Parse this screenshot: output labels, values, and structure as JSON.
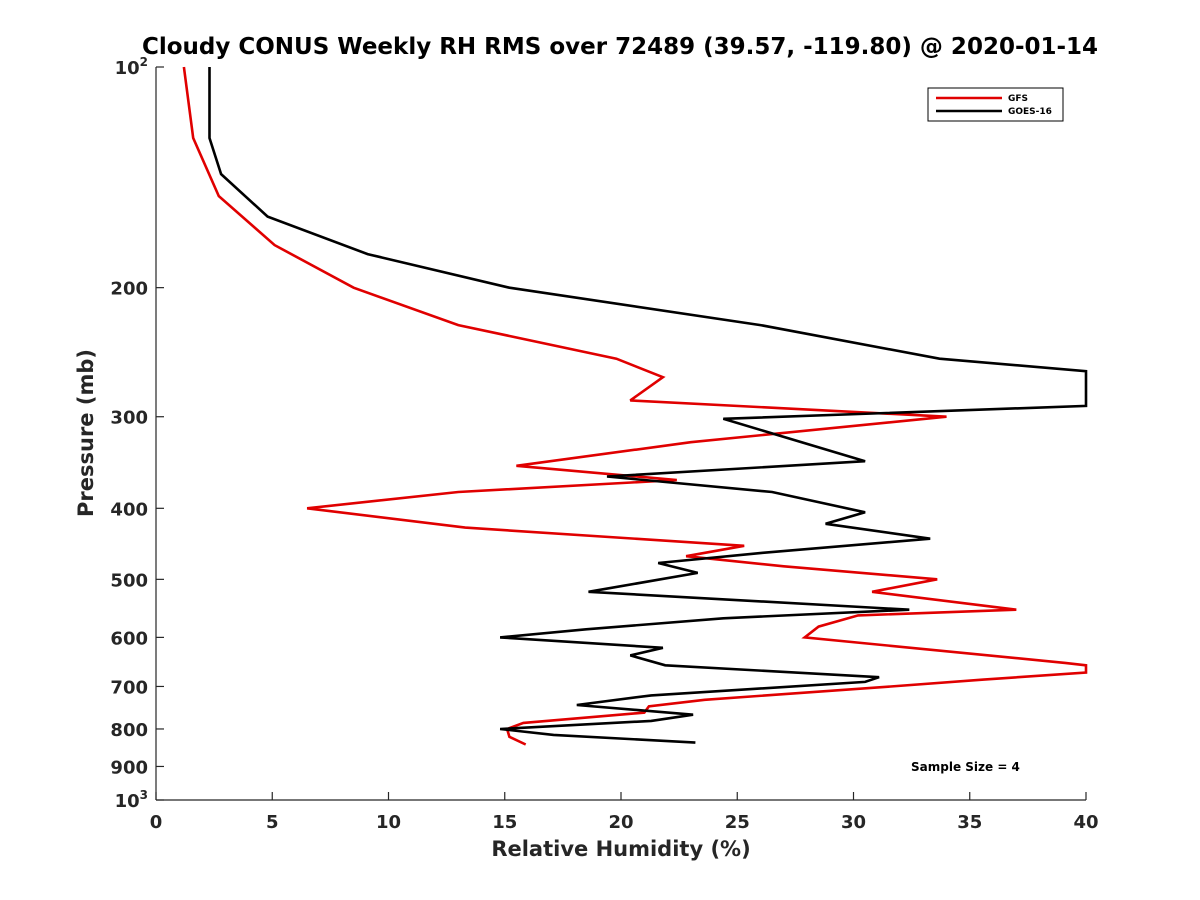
{
  "chart_data": {
    "type": "line",
    "title": "Cloudy CONUS Weekly RH RMS over 72489 (39.57, -119.80) @ 2020-01-14",
    "xlabel": "Relative Humidity (%)",
    "ylabel": "Pressure (mb)",
    "xlim": [
      0,
      40
    ],
    "ylim": [
      100,
      1000
    ],
    "y_scale": "log",
    "y_reversed": true,
    "grid": false,
    "legend_position": "top-right",
    "x_ticks": [
      "0",
      "5",
      "10",
      "15",
      "20",
      "25",
      "30",
      "35",
      "40"
    ],
    "y_ticks": [
      {
        "value": 100,
        "base": "10",
        "exp": "2"
      },
      {
        "value": 200,
        "label": "200"
      },
      {
        "value": 300,
        "label": "300"
      },
      {
        "value": 400,
        "label": "400"
      },
      {
        "value": 500,
        "label": "500"
      },
      {
        "value": 600,
        "label": "600"
      },
      {
        "value": 700,
        "label": "700"
      },
      {
        "value": 800,
        "label": "800"
      },
      {
        "value": 900,
        "label": "900"
      },
      {
        "value": 1000,
        "base": "10",
        "exp": "3"
      }
    ],
    "series": [
      {
        "name": "GFS",
        "color": "#e00000",
        "points": [
          [
            1.2,
            100
          ],
          [
            1.6,
            125
          ],
          [
            2.7,
            150
          ],
          [
            5.1,
            175
          ],
          [
            8.5,
            200
          ],
          [
            13,
            225
          ],
          [
            19.8,
            250
          ],
          [
            21.8,
            265
          ],
          [
            20.4,
            285
          ],
          [
            34,
            300
          ],
          [
            23,
            325
          ],
          [
            15.5,
            350
          ],
          [
            22.4,
            366
          ],
          [
            13,
            380
          ],
          [
            6.5,
            400
          ],
          [
            13.3,
            425
          ],
          [
            25.3,
            450
          ],
          [
            22.8,
            465
          ],
          [
            27,
            480
          ],
          [
            33.6,
            500
          ],
          [
            30.8,
            520
          ],
          [
            37,
            550
          ],
          [
            30.2,
            560
          ],
          [
            28.5,
            580
          ],
          [
            27.9,
            600
          ],
          [
            39.1,
            650
          ],
          [
            40,
            655
          ],
          [
            40,
            670
          ],
          [
            35.6,
            685
          ],
          [
            31.6,
            700
          ],
          [
            23.6,
            730
          ],
          [
            21.2,
            745
          ],
          [
            21,
            760
          ],
          [
            15.8,
            785
          ],
          [
            15.1,
            800
          ],
          [
            15.2,
            820
          ],
          [
            15.9,
            840
          ]
        ]
      },
      {
        "name": "GOES-16",
        "color": "#000000",
        "points": [
          [
            2.3,
            100
          ],
          [
            2.3,
            125
          ],
          [
            2.8,
            140
          ],
          [
            4.8,
            160
          ],
          [
            9.1,
            180
          ],
          [
            15.2,
            200
          ],
          [
            26,
            225
          ],
          [
            33.7,
            250
          ],
          [
            40,
            260
          ],
          [
            40,
            290
          ],
          [
            24.4,
            302
          ],
          [
            30.5,
            345
          ],
          [
            19.4,
            362
          ],
          [
            26.5,
            380
          ],
          [
            30.5,
            405
          ],
          [
            28.8,
            420
          ],
          [
            33.3,
            440
          ],
          [
            26.1,
            460
          ],
          [
            21.6,
            475
          ],
          [
            23.3,
            490
          ],
          [
            18.6,
            520
          ],
          [
            32.4,
            550
          ],
          [
            24.4,
            565
          ],
          [
            18.5,
            585
          ],
          [
            14.8,
            600
          ],
          [
            21.8,
            620
          ],
          [
            20.4,
            635
          ],
          [
            21.9,
            655
          ],
          [
            31.1,
            680
          ],
          [
            30.5,
            690
          ],
          [
            21.3,
            720
          ],
          [
            18.1,
            742
          ],
          [
            23.1,
            765
          ],
          [
            21.3,
            780
          ],
          [
            14.8,
            800
          ],
          [
            17.1,
            815
          ],
          [
            23.2,
            835
          ]
        ]
      }
    ],
    "annotation": "Sample Size = 4"
  }
}
